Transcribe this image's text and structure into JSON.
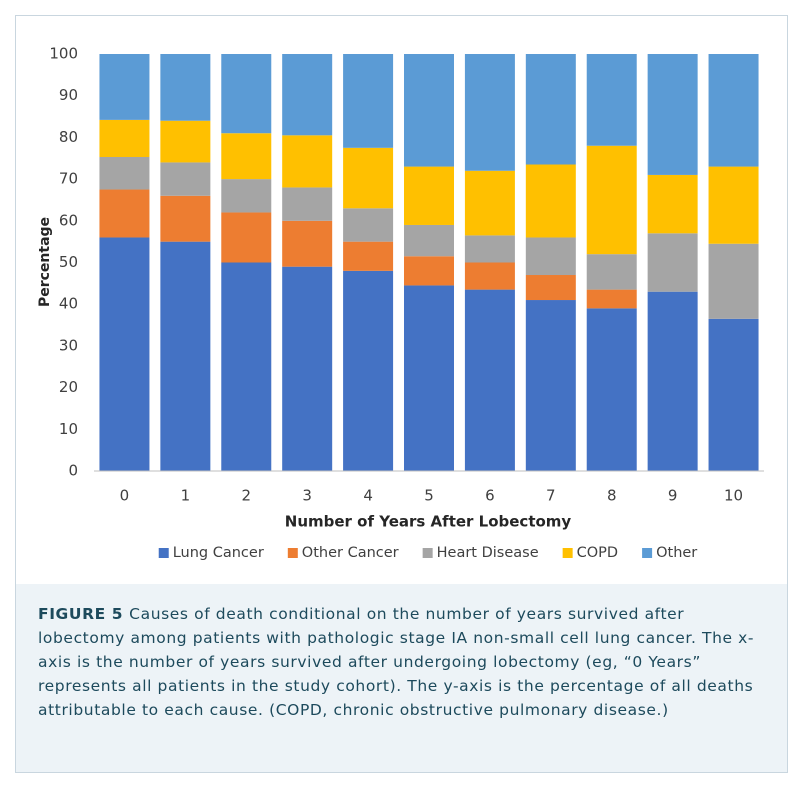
{
  "chart_data": {
    "type": "stacked-bar",
    "x_label": "Number of Years After Lobectomy",
    "y_label": "Percentage",
    "categories": [
      "0",
      "1",
      "2",
      "3",
      "4",
      "5",
      "6",
      "7",
      "8",
      "9",
      "10"
    ],
    "series": [
      {
        "name": "Lung Cancer",
        "color": "#4472c4",
        "values": [
          56,
          55,
          50,
          49,
          48,
          44.5,
          43.5,
          41,
          39,
          43,
          36.5
        ]
      },
      {
        "name": "Other Cancer",
        "color": "#ed7d31",
        "values": [
          11.5,
          11,
          12,
          11,
          7,
          7,
          6.5,
          6,
          4.5,
          0,
          0
        ]
      },
      {
        "name": "Heart Disease",
        "color": "#a5a5a5",
        "values": [
          7.8,
          8,
          8,
          8,
          8,
          7.5,
          6.5,
          9,
          8.5,
          14,
          18
        ]
      },
      {
        "name": "COPD",
        "color": "#ffc000",
        "values": [
          8.9,
          10,
          11,
          12.5,
          14.5,
          14,
          15.5,
          17.5,
          26,
          14,
          18.5
        ]
      },
      {
        "name": "Other",
        "color": "#5b9bd5",
        "values": [
          15.8,
          16,
          19,
          19.5,
          22.5,
          27,
          28,
          26.5,
          22,
          29,
          27
        ]
      }
    ],
    "ylim": [
      0,
      100
    ],
    "yticks": [
      0,
      10,
      20,
      30,
      40,
      50,
      60,
      70,
      80,
      90,
      100
    ],
    "grid": false,
    "legend": "bottom"
  },
  "caption": {
    "label": "FIGURE 5",
    "text": "Causes of death conditional on the number of years survived after lobectomy among patients with pathologic stage IA non-small cell lung cancer. The x-axis is the number of years survived after undergoing lobectomy (eg, “0 Years” represents all patients in the study cohort). The y-axis is the percentage of all deaths attributable to each cause. (COPD, chronic obstructive pulmonary disease.)"
  }
}
